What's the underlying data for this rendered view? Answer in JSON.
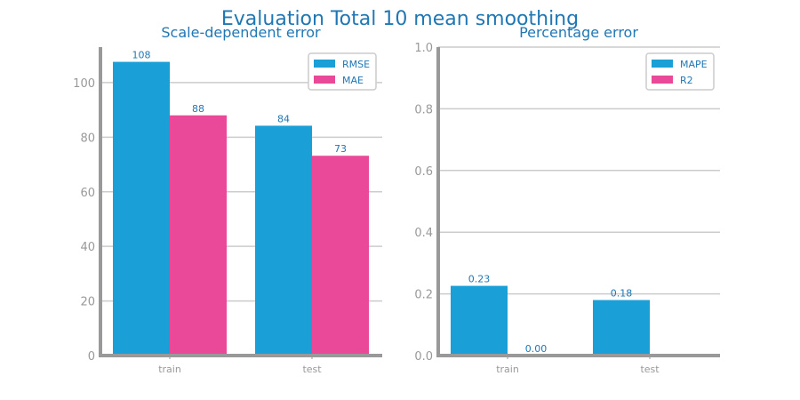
{
  "figure_title": "Evaluation Total 10 mean smoothing",
  "colors": {
    "title": "#1f77b4",
    "series_a": "#1a9fd6",
    "series_b": "#ea4899",
    "axis": "#999999",
    "grid": "#cccccc"
  },
  "chart_data": [
    {
      "type": "bar",
      "title": "Scale-dependent error",
      "categories": [
        "train",
        "test"
      ],
      "series": [
        {
          "name": "RMSE",
          "values": [
            107.6,
            84.2
          ],
          "labels": [
            "108",
            "84"
          ]
        },
        {
          "name": "MAE",
          "values": [
            88.0,
            73.2
          ],
          "labels": [
            "88",
            "73"
          ]
        }
      ],
      "yticks": [
        "0",
        "20",
        "40",
        "60",
        "80",
        "100"
      ],
      "ylim": [
        0,
        113
      ],
      "grid": true,
      "legend": "top-right"
    },
    {
      "type": "bar",
      "title": "Percentage error",
      "categories": [
        "train",
        "test"
      ],
      "series": [
        {
          "name": "MAPE",
          "values": [
            0.226,
            0.18
          ],
          "labels": [
            "0.23",
            "0.18"
          ]
        },
        {
          "name": "R2",
          "values": [
            0.0,
            0.0
          ],
          "labels": [
            "0.00",
            ""
          ]
        }
      ],
      "yticks": [
        "0.0",
        "0.2",
        "0.4",
        "0.6",
        "0.8",
        "1.0"
      ],
      "ylim": [
        0,
        1.0
      ],
      "grid": true,
      "legend": "top-right"
    }
  ]
}
